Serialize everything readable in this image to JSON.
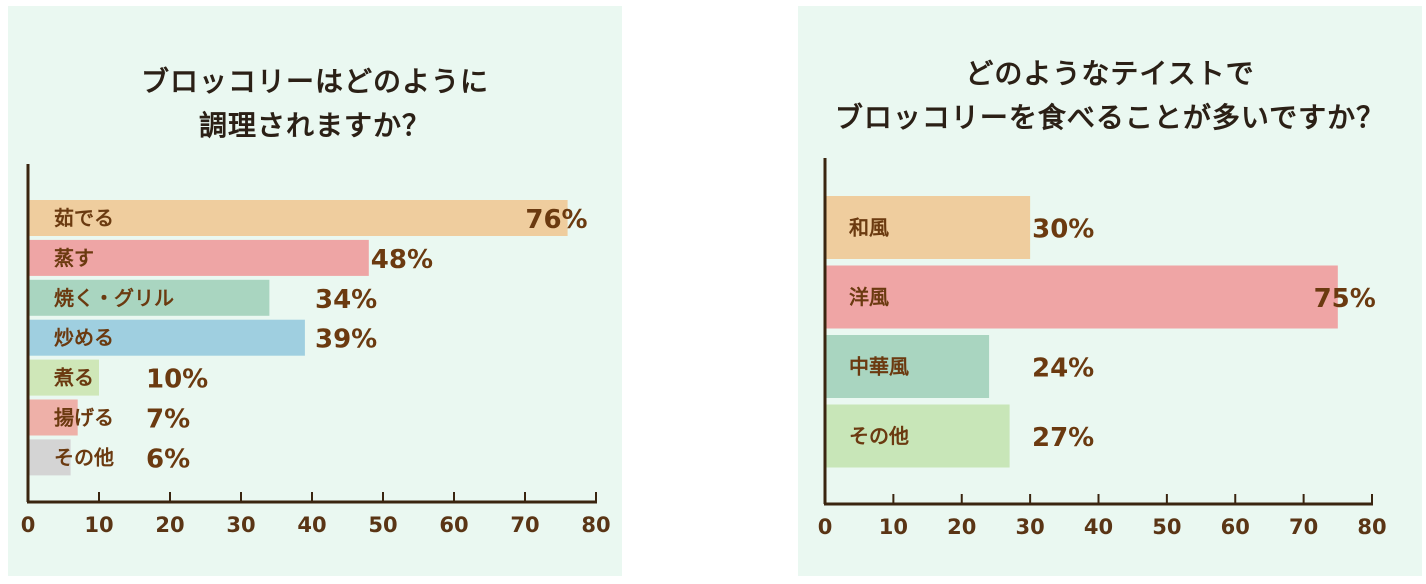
{
  "chart_data": [
    {
      "type": "bar",
      "orientation": "horizontal",
      "title_lines": [
        "ブロッコリーはどのように",
        "調理されますか？"
      ],
      "categories": [
        "茹でる",
        "蒸す",
        "焼く・グリル",
        "炒める",
        "煮る",
        "揚げる",
        "その他"
      ],
      "values": [
        76,
        48,
        34,
        39,
        10,
        7,
        6
      ],
      "value_labels": [
        "76%",
        "48%",
        "34%",
        "39%",
        "10%",
        "7%",
        "6%"
      ],
      "colors": [
        "#efcd9e",
        "#eea5a5",
        "#a9d5c0",
        "#9fcfe0",
        "#cfe7b8",
        "#eeb0a8",
        "#d4d4d4"
      ],
      "xlim": [
        0,
        80
      ],
      "xticks": [
        "0",
        "10",
        "20",
        "30",
        "40",
        "50",
        "60",
        "70",
        "80"
      ],
      "grid": false
    },
    {
      "type": "bar",
      "orientation": "horizontal",
      "title_lines": [
        "どのようなテイストで",
        "ブロッコリーを食べることが多いですか？"
      ],
      "categories": [
        "和風",
        "洋風",
        "中華風",
        "その他"
      ],
      "values": [
        30,
        75,
        24,
        27
      ],
      "value_labels": [
        "30%",
        "75%",
        "24%",
        "27%"
      ],
      "colors": [
        "#efcd9e",
        "#efa5a5",
        "#a9d5c0",
        "#c8e6b8"
      ],
      "xlim": [
        0,
        80
      ],
      "xticks": [
        "0",
        "10",
        "20",
        "30",
        "40",
        "50",
        "60",
        "70",
        "80"
      ],
      "grid": false
    }
  ],
  "axis_color": "#3a2510"
}
